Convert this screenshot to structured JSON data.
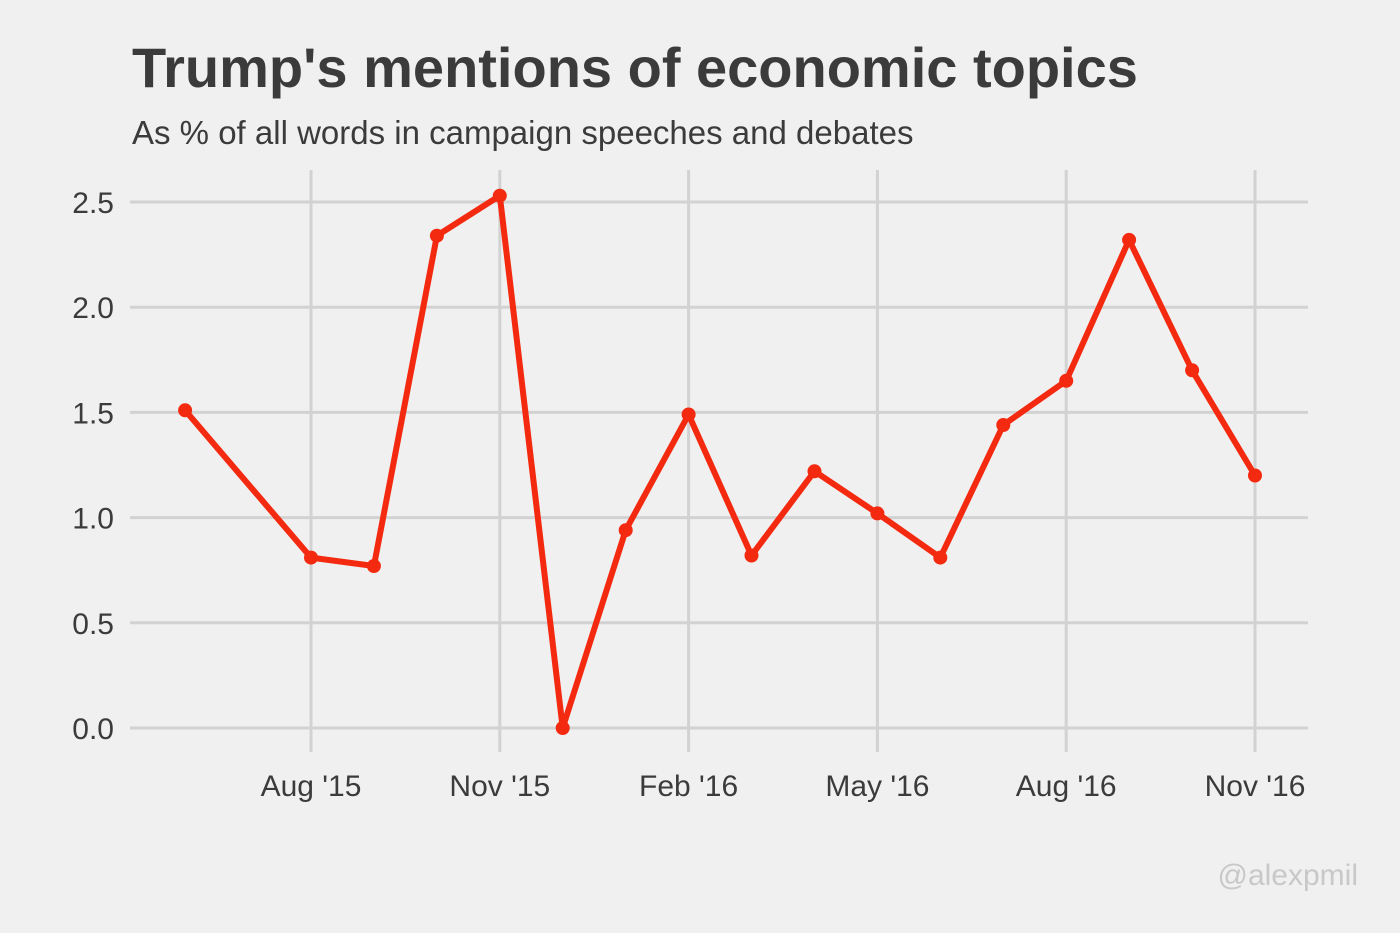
{
  "title": "Trump's mentions of economic topics",
  "subtitle": "As % of all words in campaign speeches and debates",
  "credit": "@alexpmil",
  "colors": {
    "background": "#f0f0f0",
    "grid": "#d2d2d2",
    "series": "#f42a10",
    "text": "#3b3b3b",
    "credit": "#c8c8c8"
  },
  "chart_data": {
    "type": "line",
    "title": "Trump's mentions of economic topics",
    "subtitle": "As % of all words in campaign speeches and debates",
    "xlabel": "",
    "ylabel": "",
    "x_ticks": [
      "Aug '15",
      "Nov '15",
      "Feb '16",
      "May '16",
      "Aug '16",
      "Nov '16"
    ],
    "y_ticks": [
      "0.0",
      "0.5",
      "1.0",
      "1.5",
      "2.0",
      "2.5"
    ],
    "ylim": [
      0,
      2.6
    ],
    "x": [
      "2015-06",
      "2015-08",
      "2015-09",
      "2015-10",
      "2015-11",
      "2015-12",
      "2016-01",
      "2016-02",
      "2016-03",
      "2016-04",
      "2016-05",
      "2016-06",
      "2016-07",
      "2016-08",
      "2016-09",
      "2016-10",
      "2016-11"
    ],
    "values": [
      1.51,
      0.81,
      0.77,
      2.34,
      2.53,
      0.0,
      0.94,
      1.49,
      0.82,
      1.22,
      1.02,
      0.81,
      1.44,
      1.65,
      2.32,
      1.7,
      1.2
    ],
    "grid": true,
    "legend": "none"
  }
}
